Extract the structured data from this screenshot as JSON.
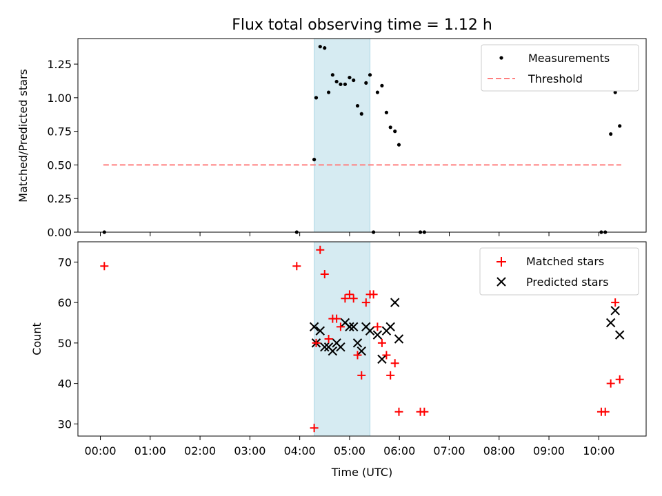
{
  "chart_data": [
    {
      "type": "scatter",
      "title": "Flux total observing time = 1.12 h",
      "xlabel": "",
      "ylabel": "Matched/Predicted stars",
      "ylim": [
        0,
        1.44
      ],
      "yticks": [
        "0.00",
        "0.25",
        "0.50",
        "0.75",
        "1.00",
        "1.25"
      ],
      "legend_position": "top-right",
      "series": [
        {
          "name": "Measurements",
          "marker": "dot",
          "color": "#000000",
          "x": [
            0.08,
            3.94,
            4.29,
            4.33,
            4.41,
            4.5,
            4.58,
            4.66,
            4.74,
            4.82,
            4.91,
            5.0,
            5.08,
            5.16,
            5.24,
            5.33,
            5.41,
            5.48,
            5.56,
            5.65,
            5.74,
            5.82,
            5.91,
            5.99,
            6.42,
            6.5,
            10.05,
            10.13,
            10.24,
            10.33,
            10.42
          ],
          "y": [
            0.0,
            0.0,
            0.54,
            1.0,
            1.38,
            1.37,
            1.04,
            1.17,
            1.12,
            1.1,
            1.1,
            1.15,
            1.13,
            0.94,
            0.88,
            1.11,
            1.17,
            0.0,
            1.04,
            1.09,
            0.89,
            0.78,
            0.75,
            0.65,
            0.0,
            0.0,
            0.0,
            0.0,
            0.73,
            1.04,
            0.79
          ]
        },
        {
          "name": "Threshold",
          "marker": "dashed-line",
          "color": "#ff7f7f",
          "x": [
            0.06,
            10.45
          ],
          "y": [
            0.5,
            0.5
          ]
        }
      ]
    },
    {
      "type": "scatter",
      "title": "",
      "xlabel": "Time (UTC)",
      "ylabel": "Count",
      "ylim": [
        27,
        75
      ],
      "yticks": [
        "30",
        "40",
        "50",
        "60",
        "70"
      ],
      "xlim": [
        -0.45,
        10.95
      ],
      "xticks": [
        "00:00",
        "01:00",
        "02:00",
        "03:00",
        "04:00",
        "05:00",
        "06:00",
        "07:00",
        "08:00",
        "09:00",
        "10:00"
      ],
      "legend_position": "top-right",
      "shaded_interval": [
        4.29,
        5.41
      ],
      "shaded_color": "#add8e6",
      "series": [
        {
          "name": "Matched stars",
          "marker": "plus",
          "color": "#ff0000",
          "x": [
            0.08,
            3.94,
            4.29,
            4.33,
            4.41,
            4.5,
            4.58,
            4.66,
            4.74,
            4.82,
            4.91,
            5.0,
            5.08,
            5.16,
            5.24,
            5.33,
            5.41,
            5.48,
            5.56,
            5.65,
            5.74,
            5.82,
            5.91,
            5.99,
            6.42,
            6.5,
            10.05,
            10.13,
            10.24,
            10.33,
            10.42
          ],
          "y": [
            69,
            69,
            29,
            50,
            73,
            67,
            51,
            56,
            56,
            54,
            61,
            62,
            61,
            47,
            42,
            60,
            62,
            62,
            54,
            50,
            47,
            42,
            45,
            33,
            33,
            33,
            33,
            33,
            40,
            60,
            41
          ]
        },
        {
          "name": "Predicted stars",
          "marker": "x",
          "color": "#000000",
          "x": [
            4.29,
            4.33,
            4.41,
            4.5,
            4.58,
            4.66,
            4.74,
            4.82,
            4.91,
            5.0,
            5.08,
            5.16,
            5.24,
            5.33,
            5.41,
            5.56,
            5.65,
            5.74,
            5.82,
            5.91,
            5.99,
            10.24,
            10.33,
            10.42
          ],
          "y": [
            54,
            50,
            53,
            49,
            49,
            48,
            50,
            49,
            55,
            54,
            54,
            50,
            48,
            54,
            53,
            52,
            46,
            53,
            54,
            60,
            51,
            55,
            58,
            52
          ]
        }
      ]
    }
  ]
}
